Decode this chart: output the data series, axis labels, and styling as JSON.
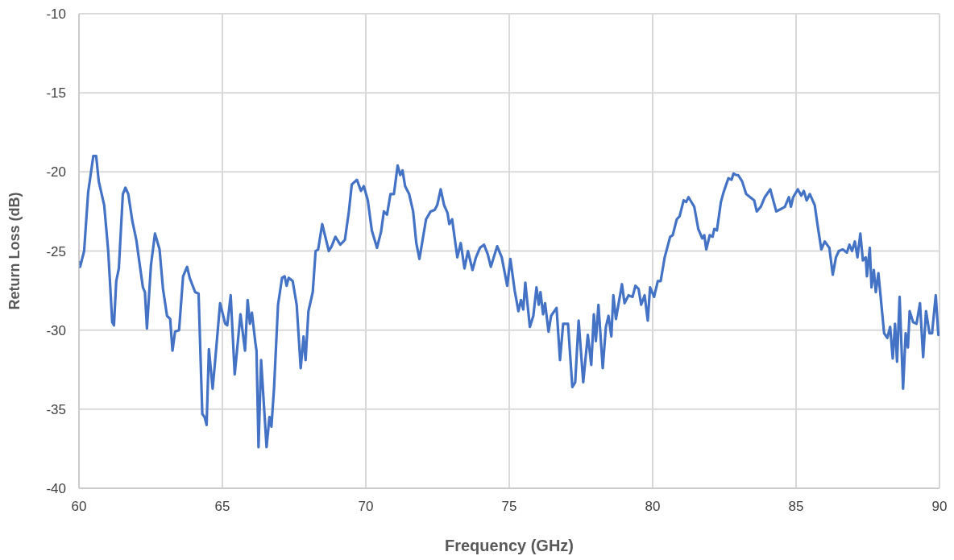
{
  "chart_data": {
    "type": "line",
    "xlabel": "Frequency (GHz)",
    "ylabel": "Return Loss (dB)",
    "xlim": [
      60,
      90
    ],
    "xticks": [
      60,
      65,
      70,
      75,
      80,
      85,
      90
    ],
    "ylim": [
      -40,
      -10
    ],
    "yticks": [
      -40,
      -35,
      -30,
      -25,
      -20,
      -15,
      -10
    ],
    "grid": true,
    "legend": false,
    "marker": "none",
    "line_style": "solid",
    "series": [
      {
        "color": "#4472c4",
        "x": [
          60.0,
          60.04,
          60.18,
          60.32,
          60.5,
          60.6,
          60.69,
          60.88,
          61.02,
          61.16,
          61.22,
          61.3,
          61.39,
          61.53,
          61.62,
          61.72,
          61.86,
          62.0,
          62.09,
          62.23,
          62.3,
          62.37,
          62.51,
          62.65,
          62.81,
          62.93,
          63.07,
          63.18,
          63.26,
          63.35,
          63.49,
          63.63,
          63.77,
          63.86,
          64.05,
          64.17,
          64.3,
          64.38,
          64.45,
          64.53,
          64.66,
          64.75,
          64.92,
          65.1,
          65.17,
          65.29,
          65.43,
          65.51,
          65.63,
          65.79,
          65.88,
          65.96,
          66.03,
          66.15,
          66.19,
          66.26,
          66.35,
          66.54,
          66.64,
          66.71,
          66.8,
          66.94,
          67.08,
          67.17,
          67.24,
          67.31,
          67.45,
          67.59,
          67.73,
          67.83,
          67.9,
          68.0,
          68.15,
          68.25,
          68.34,
          68.48,
          68.71,
          68.81,
          68.94,
          69.11,
          69.27,
          69.41,
          69.51,
          69.69,
          69.83,
          69.93,
          70.07,
          70.21,
          70.39,
          70.53,
          70.63,
          70.74,
          70.86,
          70.98,
          71.11,
          71.2,
          71.28,
          71.37,
          71.51,
          71.65,
          71.76,
          71.87,
          71.98,
          72.1,
          72.26,
          72.4,
          72.49,
          72.61,
          72.73,
          72.85,
          72.91,
          73.01,
          73.19,
          73.31,
          73.44,
          73.56,
          73.72,
          73.84,
          73.98,
          74.12,
          74.25,
          74.36,
          74.46,
          74.58,
          74.74,
          74.93,
          75.04,
          75.19,
          75.32,
          75.41,
          75.49,
          75.56,
          75.72,
          75.84,
          75.95,
          76.03,
          76.09,
          76.18,
          76.25,
          76.37,
          76.46,
          76.65,
          76.77,
          76.88,
          77.05,
          77.2,
          77.3,
          77.42,
          77.58,
          77.74,
          77.86,
          77.95,
          78.02,
          78.11,
          78.26,
          78.37,
          78.46,
          78.56,
          78.63,
          78.72,
          78.93,
          79.02,
          79.16,
          79.3,
          79.4,
          79.51,
          79.6,
          79.72,
          79.83,
          79.91,
          80.05,
          80.18,
          80.28,
          80.42,
          80.61,
          80.7,
          80.84,
          80.94,
          81.08,
          81.17,
          81.25,
          81.45,
          81.59,
          81.73,
          81.8,
          81.87,
          81.99,
          82.09,
          82.15,
          82.24,
          82.38,
          82.47,
          82.64,
          82.75,
          82.82,
          82.91,
          82.98,
          83.12,
          83.26,
          83.4,
          83.54,
          83.63,
          83.77,
          83.91,
          84.1,
          84.31,
          84.52,
          84.61,
          84.75,
          84.82,
          84.9,
          85.06,
          85.18,
          85.27,
          85.37,
          85.48,
          85.65,
          85.76,
          85.88,
          86.0,
          86.16,
          86.28,
          86.39,
          86.49,
          86.63,
          86.77,
          86.86,
          86.95,
          87.05,
          87.14,
          87.24,
          87.33,
          87.43,
          87.47,
          87.57,
          87.63,
          87.71,
          87.78,
          87.87,
          88.07,
          88.18,
          88.28,
          88.37,
          88.45,
          88.52,
          88.61,
          88.73,
          88.82,
          88.9,
          88.96,
          89.08,
          89.2,
          89.32,
          89.43,
          89.53,
          89.65,
          89.74,
          89.87,
          89.96
        ],
        "values": [
          -25.7,
          -26.0,
          -25.0,
          -21.3,
          -19.0,
          -19.0,
          -20.6,
          -22.1,
          -25.0,
          -29.5,
          -29.7,
          -26.9,
          -26.1,
          -21.4,
          -21.0,
          -21.4,
          -23.1,
          -24.3,
          -25.5,
          -27.3,
          -27.6,
          -29.9,
          -25.9,
          -23.9,
          -24.9,
          -27.4,
          -29.1,
          -29.3,
          -31.3,
          -30.1,
          -30.0,
          -26.6,
          -26.0,
          -26.7,
          -27.6,
          -27.7,
          -35.3,
          -35.5,
          -36.0,
          -31.2,
          -33.7,
          -31.9,
          -28.3,
          -29.6,
          -29.7,
          -27.8,
          -32.8,
          -31.3,
          -29.0,
          -31.3,
          -28.1,
          -29.6,
          -28.9,
          -30.8,
          -31.3,
          -37.4,
          -31.9,
          -37.4,
          -35.5,
          -36.1,
          -33.7,
          -28.4,
          -26.7,
          -26.6,
          -27.2,
          -26.7,
          -26.9,
          -28.4,
          -32.4,
          -30.4,
          -31.9,
          -28.8,
          -27.6,
          -25.0,
          -24.9,
          -23.3,
          -25.0,
          -24.7,
          -24.1,
          -24.6,
          -24.3,
          -22.5,
          -20.8,
          -20.5,
          -21.2,
          -20.9,
          -21.8,
          -23.7,
          -24.8,
          -23.8,
          -22.5,
          -22.7,
          -21.4,
          -21.4,
          -19.6,
          -20.2,
          -19.9,
          -20.9,
          -21.4,
          -22.5,
          -24.5,
          -25.5,
          -24.3,
          -23.0,
          -22.5,
          -22.4,
          -22.1,
          -21.1,
          -22.1,
          -22.6,
          -23.3,
          -23.0,
          -25.4,
          -24.5,
          -26.1,
          -25.0,
          -26.2,
          -25.4,
          -24.8,
          -24.6,
          -25.2,
          -26.0,
          -25.4,
          -24.7,
          -25.4,
          -27.2,
          -25.5,
          -27.5,
          -28.8,
          -28.1,
          -28.7,
          -27.0,
          -29.8,
          -29.1,
          -27.3,
          -28.4,
          -27.6,
          -29.0,
          -28.3,
          -30.1,
          -29.1,
          -28.6,
          -31.9,
          -29.6,
          -29.6,
          -33.6,
          -33.3,
          -29.4,
          -33.3,
          -30.3,
          -32.2,
          -29.0,
          -30.7,
          -28.4,
          -32.4,
          -29.8,
          -29.1,
          -30.4,
          -27.8,
          -29.3,
          -27.1,
          -28.3,
          -27.8,
          -27.9,
          -27.2,
          -27.4,
          -28.4,
          -27.8,
          -29.4,
          -27.3,
          -27.9,
          -26.9,
          -26.9,
          -25.4,
          -24.1,
          -24.0,
          -23.0,
          -22.8,
          -21.8,
          -21.9,
          -21.6,
          -22.2,
          -23.6,
          -24.2,
          -24.0,
          -24.9,
          -24.0,
          -24.1,
          -23.6,
          -23.7,
          -21.9,
          -21.3,
          -20.4,
          -20.5,
          -20.1,
          -20.2,
          -20.2,
          -20.6,
          -21.4,
          -21.6,
          -21.8,
          -22.5,
          -22.2,
          -21.6,
          -21.1,
          -22.5,
          -22.3,
          -22.2,
          -21.6,
          -22.2,
          -21.6,
          -21.1,
          -21.5,
          -21.2,
          -21.8,
          -21.4,
          -22.1,
          -23.5,
          -24.9,
          -24.4,
          -24.8,
          -26.5,
          -25.4,
          -25.0,
          -24.9,
          -25.1,
          -24.6,
          -25.0,
          -24.4,
          -25.4,
          -23.9,
          -25.6,
          -25.4,
          -26.6,
          -24.8,
          -27.3,
          -26.2,
          -27.6,
          -26.4,
          -30.2,
          -30.5,
          -29.8,
          -31.8,
          -29.6,
          -32.0,
          -27.9,
          -33.7,
          -30.2,
          -31.1,
          -28.8,
          -29.5,
          -29.6,
          -28.3,
          -31.7,
          -28.8,
          -30.2,
          -30.2,
          -27.8,
          -30.3
        ]
      }
    ]
  }
}
